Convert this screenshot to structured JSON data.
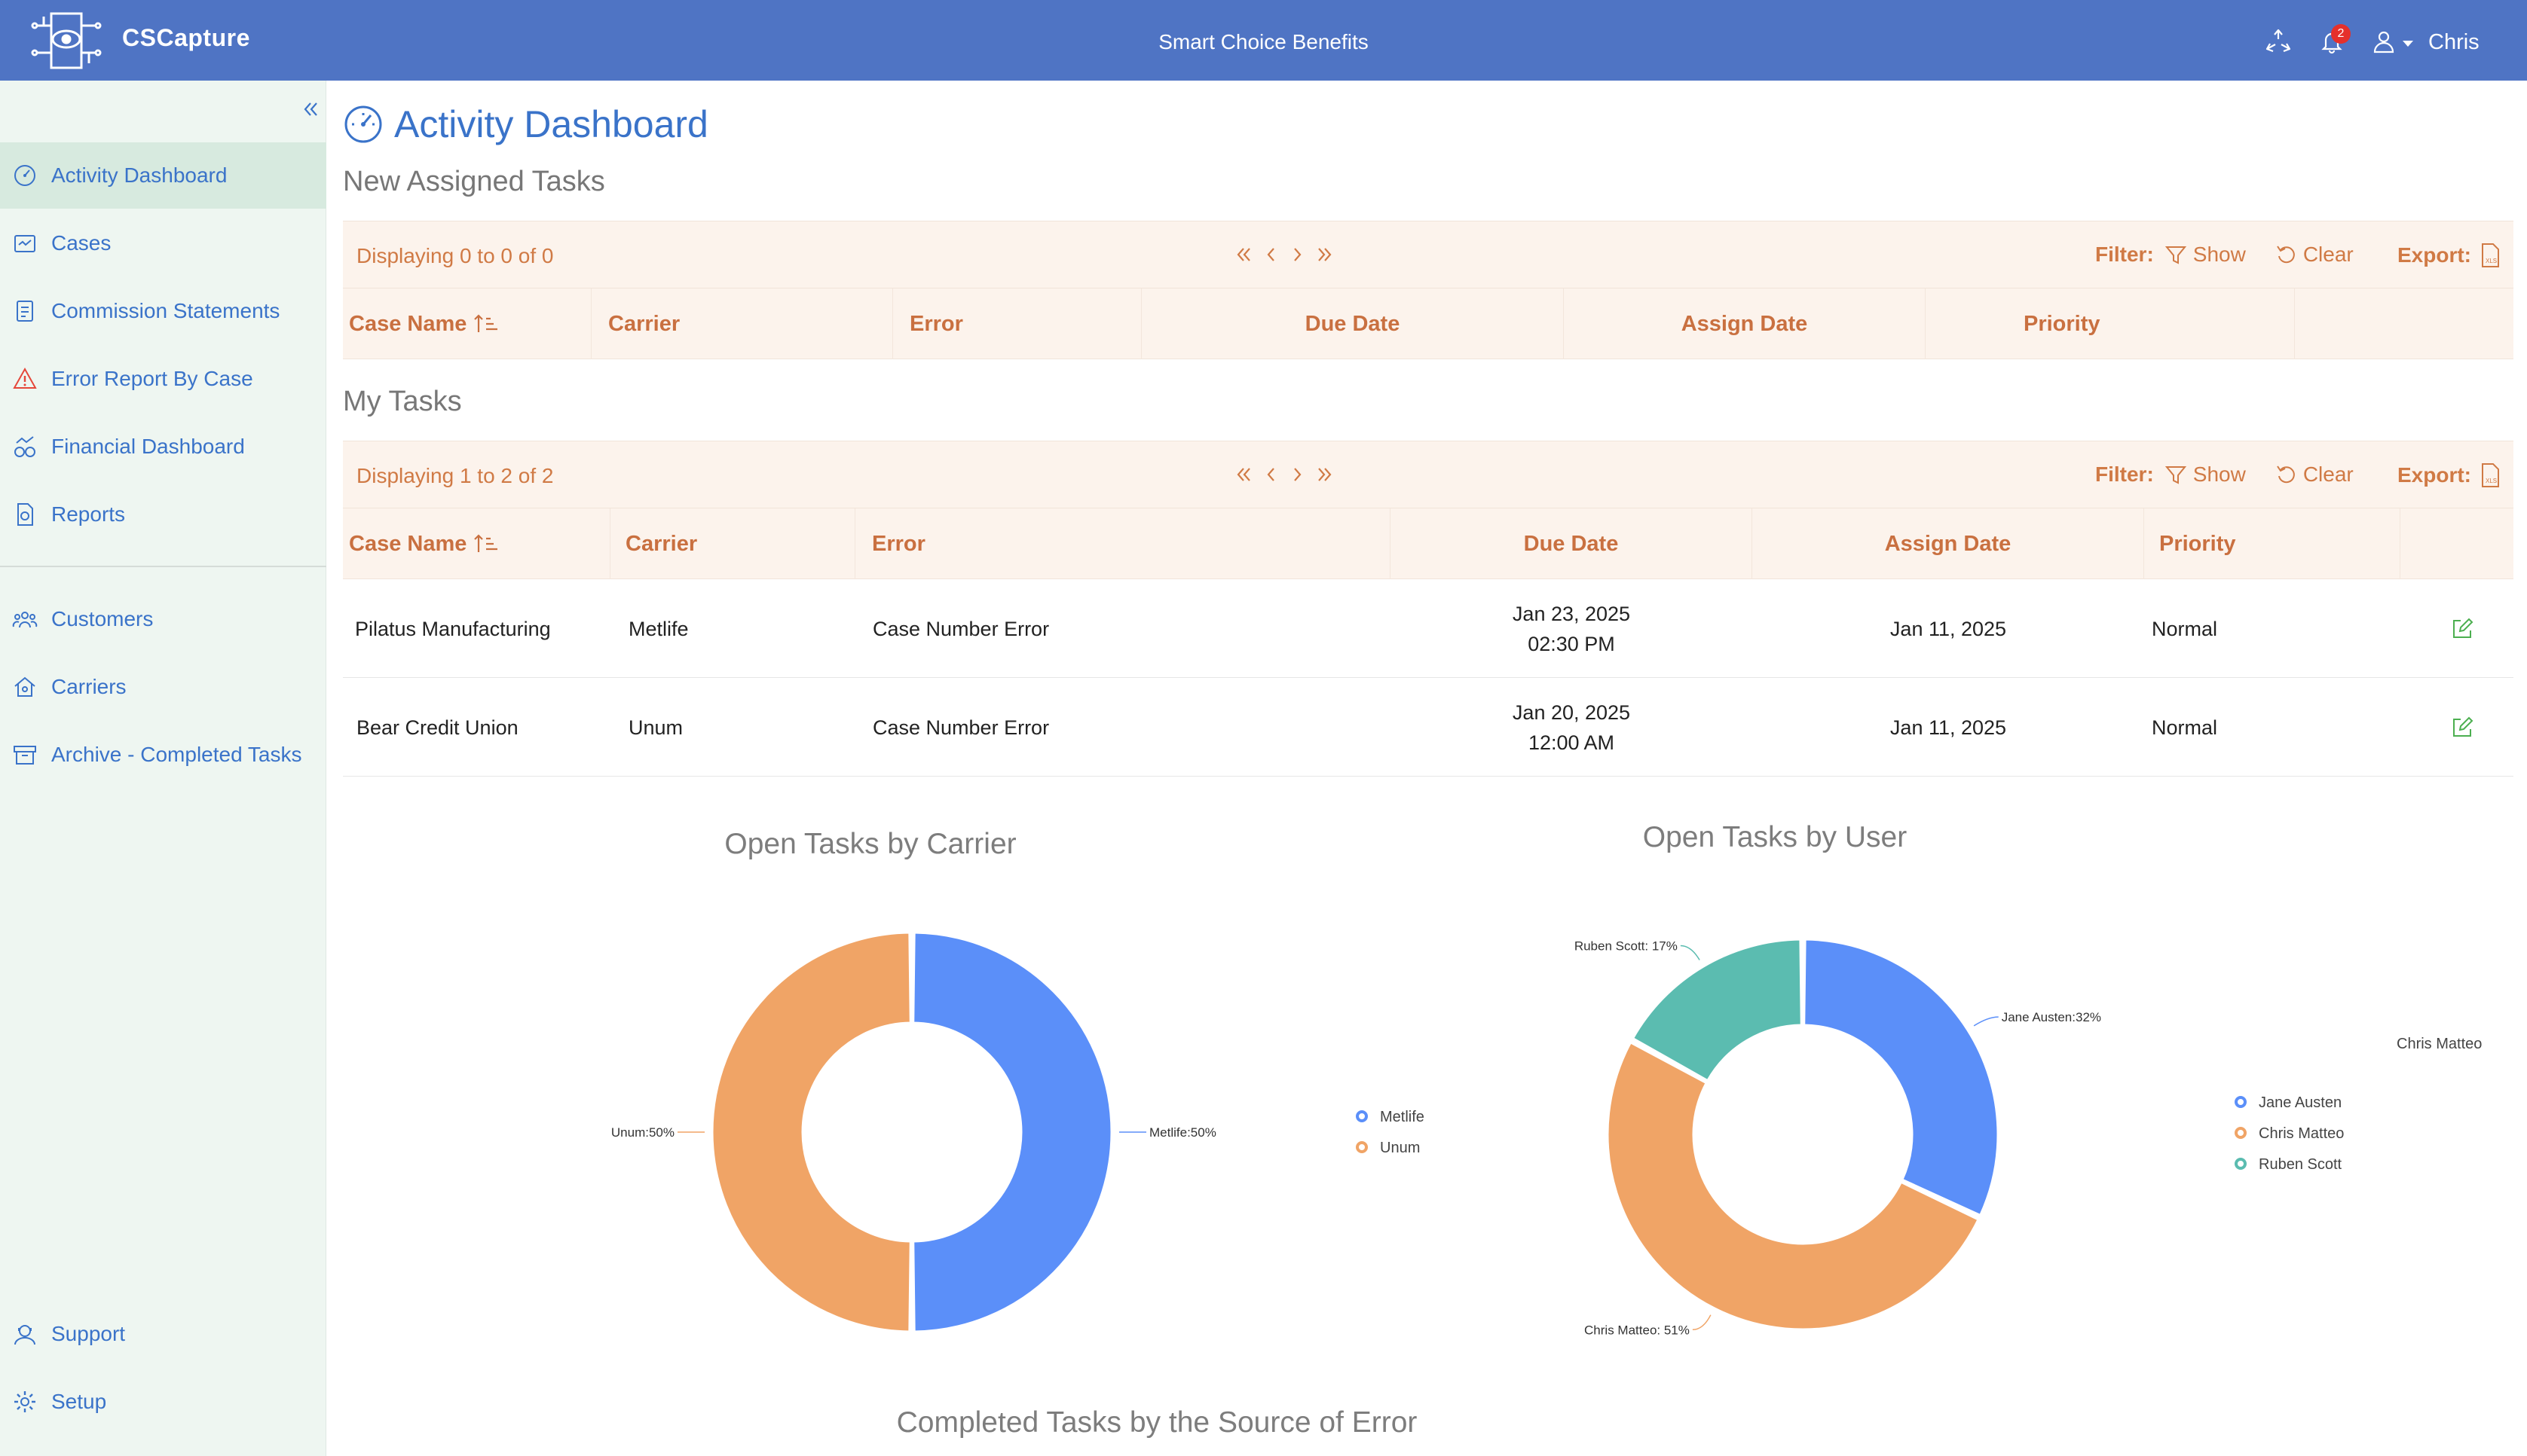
{
  "app": {
    "name": "CSCapture",
    "org": "Smart Choice Benefits",
    "user": "Chris",
    "notification_count": "2"
  },
  "colors": {
    "header": "#4f74c4",
    "accent_blue": "#3a73c9",
    "accent_orange": "#d07a45",
    "sidebar_bg": "#eef6f1",
    "blue_series": "#5b8ff9",
    "orange_series": "#f0a466",
    "teal_series": "#5bbcb0"
  },
  "sidebar": {
    "items": [
      {
        "label": "Activity Dashboard",
        "icon": "dashboard-icon",
        "active": true
      },
      {
        "label": "Cases",
        "icon": "cases-icon"
      },
      {
        "label": "Commission Statements",
        "icon": "statement-icon"
      },
      {
        "label": "Error Report By Case",
        "icon": "warning-icon"
      },
      {
        "label": "Financial Dashboard",
        "icon": "financial-icon"
      },
      {
        "label": "Reports",
        "icon": "report-icon"
      },
      {
        "label": "Customers",
        "icon": "customers-icon"
      },
      {
        "label": "Carriers",
        "icon": "carrier-icon"
      },
      {
        "label": "Archive - Completed Tasks",
        "icon": "archive-icon"
      },
      {
        "label": "Support",
        "icon": "support-icon"
      },
      {
        "label": "Setup",
        "icon": "gear-icon"
      }
    ]
  },
  "page": {
    "title": "Activity Dashboard"
  },
  "toolbar_labels": {
    "filter": "Filter:",
    "show": "Show",
    "clear": "Clear",
    "export": "Export:"
  },
  "new_tasks": {
    "title": "New Assigned Tasks",
    "displaying": "Displaying 0 to 0 of 0",
    "columns": [
      "Case Name",
      "Carrier",
      "Error",
      "Due Date",
      "Assign Date",
      "Priority"
    ]
  },
  "my_tasks": {
    "title": "My Tasks",
    "displaying": "Displaying 1 to 2 of 2",
    "columns": [
      "Case Name",
      "Carrier",
      "Error",
      "Due Date",
      "Assign Date",
      "Priority"
    ],
    "rows": [
      {
        "case_name": "Pilatus Manufacturing",
        "carrier": "Metlife",
        "error": "Case Number Error",
        "due_date": "Jan 23, 2025",
        "due_time": "02:30 PM",
        "assign_date": "Jan 11, 2025",
        "priority": "Normal"
      },
      {
        "case_name": "Bear Credit Union",
        "carrier": "Unum",
        "error": "Case Number Error",
        "due_date": "Jan 20, 2025",
        "due_time": "12:00 AM",
        "assign_date": "Jan 11, 2025",
        "priority": "Normal"
      }
    ]
  },
  "chart_data": [
    {
      "type": "pie",
      "variant": "donut",
      "title": "Open Tasks by Carrier",
      "categories": [
        "Metlife",
        "Unum"
      ],
      "values": [
        50,
        50
      ],
      "unit": "%",
      "labels": [
        "Metlife:50%",
        "Unum:50%"
      ],
      "colors": [
        "#5b8ff9",
        "#f0a466"
      ],
      "legend": "right"
    },
    {
      "type": "pie",
      "variant": "donut",
      "title": "Open Tasks by User",
      "categories": [
        "Jane Austen",
        "Chris Matteo",
        "Ruben Scott"
      ],
      "values": [
        32,
        51,
        17
      ],
      "unit": "%",
      "labels": [
        "Jane Austen:32%",
        "Chris Matteo: 51%",
        "Ruben Scott: 17%"
      ],
      "colors": [
        "#5b8ff9",
        "#f0a466",
        "#5bbcb0"
      ],
      "legend": "right",
      "tooltip_text": "Chris Matteo"
    },
    {
      "type": "pie",
      "title": "Completed Tasks by the Source of Error"
    }
  ]
}
